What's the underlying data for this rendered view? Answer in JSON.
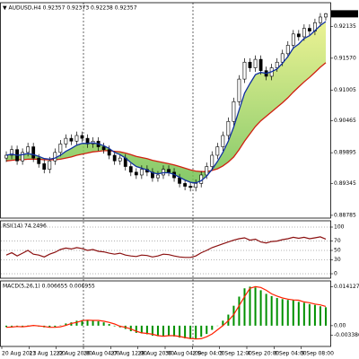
{
  "chart_data": [
    {
      "type": "candlestick",
      "title": "▼ AUDUSD,H4  0.92357 0.92373 0.92238 0.92357",
      "last_price": 0.92357,
      "ylim": [
        0.88736,
        0.92554
      ],
      "yticks": [
        0.92135,
        {
          "value": 0.9157,
          "label": "0.91570"
        },
        0.91005,
        0.90465,
        0.89895,
        0.89345,
        0.88785
      ],
      "candles": [
        [
          0.898,
          0.8992,
          0.8973,
          0.8985
        ],
        [
          0.8985,
          0.9002,
          0.8978,
          0.8995
        ],
        [
          0.8995,
          0.9002,
          0.8968,
          0.8975
        ],
        [
          0.8975,
          0.8997,
          0.8968,
          0.899
        ],
        [
          0.899,
          0.9007,
          0.8983,
          0.9
        ],
        [
          0.9,
          0.9007,
          0.8973,
          0.898
        ],
        [
          0.898,
          0.8987,
          0.8963,
          0.897
        ],
        [
          0.897,
          0.8977,
          0.8953,
          0.896
        ],
        [
          0.896,
          0.8982,
          0.8953,
          0.8975
        ],
        [
          0.8975,
          0.8997,
          0.8968,
          0.899
        ],
        [
          0.899,
          0.9012,
          0.8983,
          0.9005
        ],
        [
          0.9005,
          0.9022,
          0.8998,
          0.9015
        ],
        [
          0.9015,
          0.9022,
          0.9003,
          0.901
        ],
        [
          0.901,
          0.9027,
          0.9003,
          0.902
        ],
        [
          0.902,
          0.9027,
          0.9008,
          0.9015
        ],
        [
          0.9015,
          0.9022,
          0.8998,
          0.9005
        ],
        [
          0.9005,
          0.9017,
          0.8998,
          0.901
        ],
        [
          0.901,
          0.9017,
          0.8993,
          0.9
        ],
        [
          0.9,
          0.9007,
          0.8988,
          0.8995
        ],
        [
          0.8995,
          0.9002,
          0.8978,
          0.8985
        ],
        [
          0.8985,
          0.8992,
          0.8968,
          0.8975
        ],
        [
          0.8975,
          0.8987,
          0.8968,
          0.898
        ],
        [
          0.898,
          0.8987,
          0.8958,
          0.8965
        ],
        [
          0.8965,
          0.8972,
          0.8948,
          0.8955
        ],
        [
          0.8955,
          0.8962,
          0.8943,
          0.895
        ],
        [
          0.895,
          0.8967,
          0.8943,
          0.896
        ],
        [
          0.896,
          0.8967,
          0.8948,
          0.8955
        ],
        [
          0.8955,
          0.8962,
          0.8938,
          0.8945
        ],
        [
          0.8945,
          0.8957,
          0.8938,
          0.895
        ],
        [
          0.895,
          0.8967,
          0.8943,
          0.896
        ],
        [
          0.896,
          0.8967,
          0.8948,
          0.8955
        ],
        [
          0.8955,
          0.8962,
          0.8938,
          0.8945
        ],
        [
          0.8945,
          0.8952,
          0.8928,
          0.8935
        ],
        [
          0.8935,
          0.8942,
          0.8923,
          0.893
        ],
        [
          0.893,
          0.8937,
          0.8921,
          0.8928
        ],
        [
          0.8928,
          0.8942,
          0.8921,
          0.8935
        ],
        [
          0.8935,
          0.8957,
          0.8928,
          0.895
        ],
        [
          0.895,
          0.8972,
          0.8943,
          0.8965
        ],
        [
          0.8965,
          0.8992,
          0.8958,
          0.8985
        ],
        [
          0.8985,
          0.9007,
          0.8978,
          0.9
        ],
        [
          0.9,
          0.9027,
          0.8993,
          0.902
        ],
        [
          0.902,
          0.9052,
          0.9013,
          0.9045
        ],
        [
          0.9045,
          0.9087,
          0.9038,
          0.908
        ],
        [
          0.908,
          0.9127,
          0.9073,
          0.912
        ],
        [
          0.912,
          0.9157,
          0.9113,
          0.915
        ],
        [
          0.915,
          0.9157,
          0.9133,
          0.914
        ],
        [
          0.914,
          0.9162,
          0.9133,
          0.9155
        ],
        [
          0.9155,
          0.9162,
          0.9128,
          0.9135
        ],
        [
          0.9135,
          0.9142,
          0.9118,
          0.9125
        ],
        [
          0.9125,
          0.9147,
          0.9118,
          0.914
        ],
        [
          0.914,
          0.9157,
          0.9133,
          0.915
        ],
        [
          0.915,
          0.9172,
          0.9143,
          0.9165
        ],
        [
          0.9165,
          0.9187,
          0.9158,
          0.918
        ],
        [
          0.918,
          0.9207,
          0.9173,
          0.92
        ],
        [
          0.92,
          0.9207,
          0.9188,
          0.9195
        ],
        [
          0.9195,
          0.9217,
          0.9188,
          0.921
        ],
        [
          0.921,
          0.9217,
          0.9198,
          0.9205
        ],
        [
          0.9205,
          0.9227,
          0.9198,
          0.922
        ],
        [
          0.922,
          0.9237,
          0.9213,
          0.923
        ],
        [
          0.923,
          0.92373,
          0.92238,
          0.92357
        ]
      ],
      "ma_fast": {
        "color": "#1030a0",
        "values": [
          0.8985,
          0.8987,
          0.8985,
          0.8986,
          0.8988,
          0.8986,
          0.8983,
          0.8979,
          0.8978,
          0.898,
          0.8985,
          0.8992,
          0.8997,
          0.9003,
          0.9006,
          0.9006,
          0.9007,
          0.9005,
          0.9002,
          0.8997,
          0.899,
          0.8986,
          0.898,
          0.8972,
          0.8965,
          0.8962,
          0.8959,
          0.8954,
          0.8952,
          0.8954,
          0.8954,
          0.8951,
          0.8946,
          0.8941,
          0.8937,
          0.8936,
          0.894,
          0.8948,
          0.896,
          0.8974,
          0.899,
          0.901,
          0.9035,
          0.9065,
          0.9095,
          0.9112,
          0.9128,
          0.9132,
          0.913,
          0.9133,
          0.9138,
          0.9148,
          0.916,
          0.9175,
          0.9182,
          0.9192,
          0.9197,
          0.9206,
          0.9215,
          0.9222
        ]
      },
      "ma_slow": {
        "color": "#d02010",
        "values": [
          0.8975,
          0.8976,
          0.8977,
          0.8977,
          0.8978,
          0.8978,
          0.8978,
          0.8977,
          0.8977,
          0.8977,
          0.8978,
          0.898,
          0.8982,
          0.8985,
          0.8987,
          0.8989,
          0.8991,
          0.8992,
          0.8993,
          0.8993,
          0.8992,
          0.8991,
          0.8989,
          0.8986,
          0.8983,
          0.8981,
          0.8979,
          0.8976,
          0.8974,
          0.8972,
          0.897,
          0.8968,
          0.8965,
          0.8962,
          0.8959,
          0.8957,
          0.8956,
          0.8956,
          0.8958,
          0.8961,
          0.8966,
          0.8973,
          0.8982,
          0.8995,
          0.901,
          0.9023,
          0.9036,
          0.9046,
          0.9054,
          0.9062,
          0.907,
          0.9078,
          0.9087,
          0.9097,
          0.9106,
          0.9115,
          0.9123,
          0.9132,
          0.9141,
          0.9149
        ]
      },
      "xtick_labels": [
        "20 Aug 2013",
        "21 Aug 12:00",
        "22 Aug 20:00",
        "26 Aug 04:00",
        "27 Aug 12:00",
        "28 Aug 20:00",
        "30 Aug 04:00",
        "2 Sep 04:00",
        "3 Sep 12:00",
        "4 Sep 20:00",
        "6 Sep 04:00",
        "9 Sep 08:00"
      ]
    },
    {
      "type": "line",
      "label": "RSI(14) 74.2496",
      "color": "#8b1010",
      "ylim": [
        0,
        100
      ],
      "yticks": [
        100,
        70,
        50,
        30,
        0
      ],
      "values": [
        40,
        45,
        38,
        44,
        50,
        42,
        40,
        36,
        42,
        46,
        52,
        55,
        53,
        56,
        54,
        50,
        52,
        48,
        47,
        44,
        42,
        44,
        40,
        38,
        37,
        40,
        39,
        36,
        38,
        42,
        41,
        38,
        36,
        35,
        35,
        38,
        45,
        50,
        56,
        60,
        64,
        68,
        72,
        75,
        77,
        72,
        74,
        68,
        66,
        69,
        70,
        73,
        75,
        78,
        76,
        78,
        75,
        77,
        79,
        74.2496
      ]
    },
    {
      "type": "macd",
      "label": "MACD(5,26,1) 0.006655 0.006955",
      "color": "#009000",
      "signal_color": "#ff2000",
      "ylim": [
        -0.0075,
        0.0152
      ],
      "yticks": [
        0.014127,
        {
          "value": 0,
          "label": "0.00"
        },
        -0.003386
      ],
      "values": [
        -0.0005,
        -0.0003,
        -0.0004,
        -0.0002,
        0.0001,
        -0.0001,
        -0.0003,
        -0.0006,
        -0.0006,
        -0.0004,
        0.0001,
        0.0008,
        0.0012,
        0.0018,
        0.002,
        0.0019,
        0.0019,
        0.0016,
        0.0012,
        0.0006,
        -0.0002,
        -0.0006,
        -0.0012,
        -0.002,
        -0.0026,
        -0.0028,
        -0.0031,
        -0.0036,
        -0.0038,
        -0.0036,
        -0.0036,
        -0.0039,
        -0.0043,
        -0.0046,
        -0.0048,
        -0.0047,
        -0.004,
        -0.003,
        -0.0015,
        0,
        0.0018,
        0.004,
        0.0072,
        0.0105,
        0.0135,
        0.0141,
        0.0138,
        0.0128,
        0.0115,
        0.0107,
        0.01,
        0.0096,
        0.0093,
        0.0092,
        0.0086,
        0.0083,
        0.0078,
        0.0075,
        0.007,
        0.006655
      ],
      "signal": [
        -0.0006,
        -0.0005,
        -0.0003,
        -0.0004,
        -0.0002,
        0.0001,
        -0.0001,
        -0.0003,
        -0.0006,
        -0.0006,
        -0.0004,
        0.0001,
        0.0008,
        0.0012,
        0.0018,
        0.002,
        0.0019,
        0.0019,
        0.0016,
        0.0012,
        0.0006,
        -0.0002,
        -0.0006,
        -0.0012,
        -0.002,
        -0.0026,
        -0.0028,
        -0.0031,
        -0.0036,
        -0.0038,
        -0.0036,
        -0.0036,
        -0.0039,
        -0.0043,
        -0.0046,
        -0.0048,
        -0.0047,
        -0.004,
        -0.003,
        -0.0015,
        0,
        0.0018,
        0.004,
        0.0072,
        0.0105,
        0.0135,
        0.0141,
        0.0138,
        0.0128,
        0.0115,
        0.0107,
        0.01,
        0.0096,
        0.0093,
        0.0092,
        0.0086,
        0.0083,
        0.0078,
        0.0075,
        0.006955
      ]
    }
  ]
}
